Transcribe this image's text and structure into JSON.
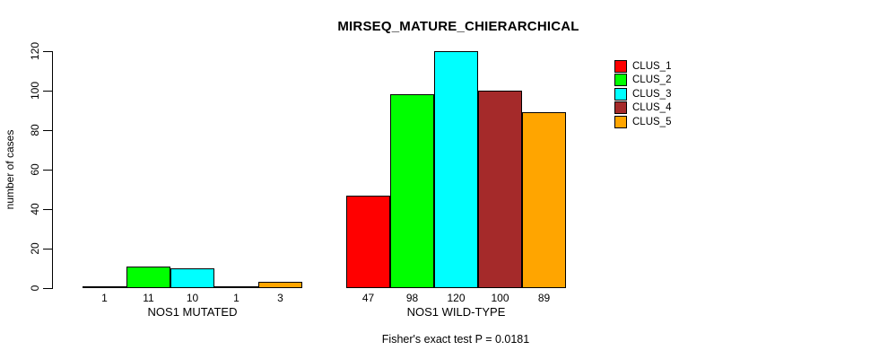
{
  "chart_data": {
    "type": "bar",
    "title": "MIRSEQ_MATURE_CHIERARCHICAL",
    "ylabel": "number of cases",
    "ylim": [
      0,
      120
    ],
    "yticks": [
      0,
      20,
      40,
      60,
      80,
      100,
      120
    ],
    "grid": false,
    "legend_position": "top-right",
    "bar_value_labels_shown": true,
    "categories": [
      "NOS1 MUTATED",
      "NOS1 WILD-TYPE"
    ],
    "series": [
      {
        "name": "CLUS_1",
        "color": "#ff0000",
        "values": [
          1,
          47
        ]
      },
      {
        "name": "CLUS_2",
        "color": "#00ff00",
        "values": [
          11,
          98
        ]
      },
      {
        "name": "CLUS_3",
        "color": "#00ffff",
        "values": [
          10,
          120
        ]
      },
      {
        "name": "CLUS_4",
        "color": "#a52a2a",
        "values": [
          1,
          100
        ]
      },
      {
        "name": "CLUS_5",
        "color": "#ffa500",
        "values": [
          3,
          89
        ]
      }
    ],
    "footnote": "Fisher's exact test P = 0.0181"
  }
}
